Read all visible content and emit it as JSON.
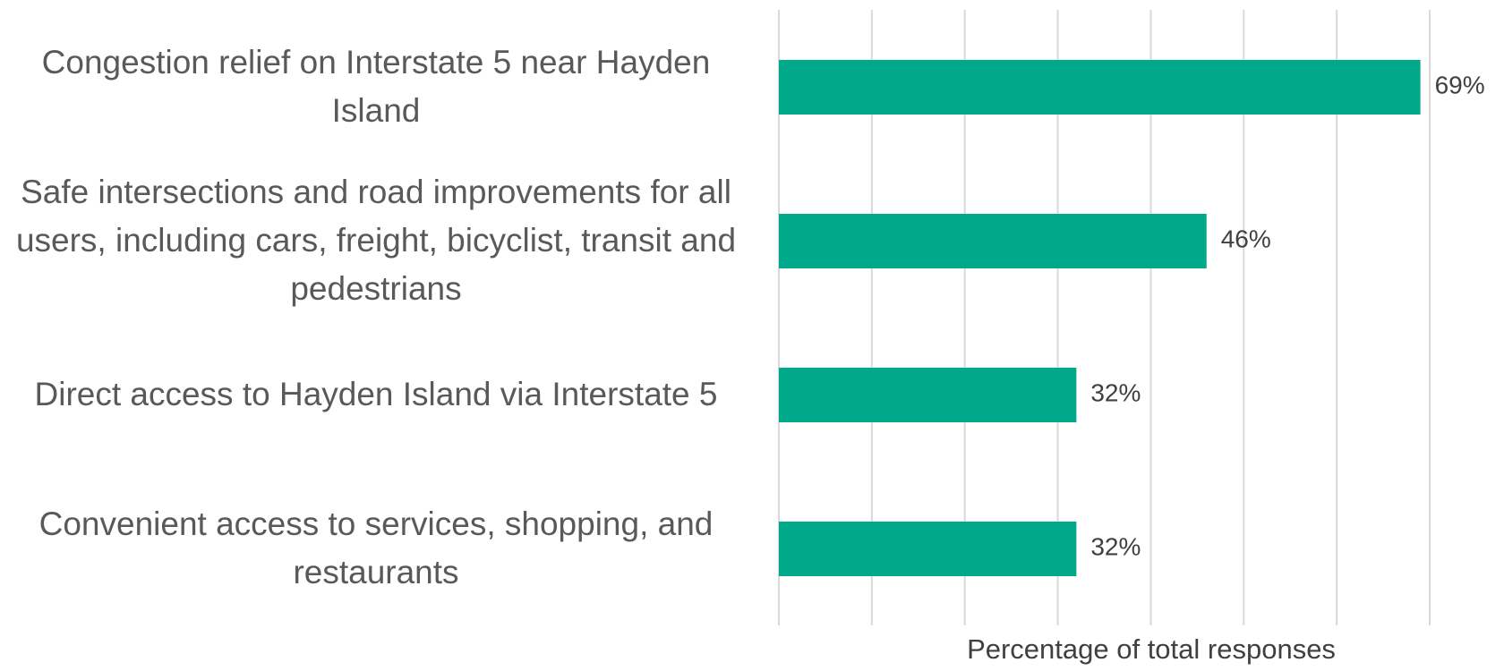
{
  "chart_data": {
    "type": "bar",
    "orientation": "horizontal",
    "categories": [
      "Congestion relief on Interstate 5 near Hayden Island",
      "Safe intersections and road improvements for all users, including cars, freight, bicyclist, transit and pedestrians",
      "Direct access to Hayden Island via Interstate 5",
      "Convenient access to services, shopping, and restaurants"
    ],
    "values": [
      69,
      46,
      32,
      32
    ],
    "value_labels": [
      "69%",
      "46%",
      "32%",
      "32%"
    ],
    "color": "#00a98a",
    "xlabel": "Percentage of total responses",
    "xlim": [
      0,
      70
    ],
    "xticks": [
      0,
      10,
      20,
      30,
      40,
      50,
      60,
      70
    ],
    "grid": true
  }
}
